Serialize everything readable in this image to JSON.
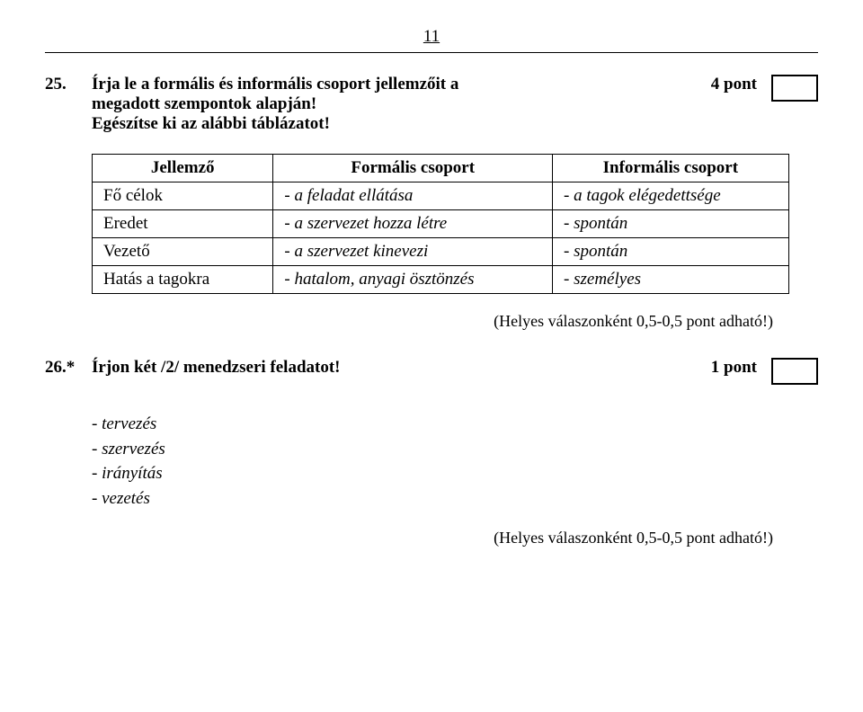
{
  "page_number": "11",
  "q25": {
    "number": "25.",
    "text_line1": "Írja le a formális és informális csoport jellemzőit a",
    "text_line2": "megadott szempontok alapján!",
    "text_line3": "Egészítse ki az alábbi táblázatot!",
    "points": "4 pont"
  },
  "table": {
    "h1": "Jellemző",
    "h2": "Formális csoport",
    "h3": "Informális csoport",
    "r1c1": "Fő célok",
    "r1c2": "- a feladat ellátása",
    "r1c3": "- a tagok elégedettsége",
    "r2c1": "Eredet",
    "r2c2": "- a szervezet hozza létre",
    "r2c3": "- spontán",
    "r3c1": "Vezető",
    "r3c2": "- a szervezet kinevezi",
    "r3c3": "- spontán",
    "r4c1": "Hatás a tagokra",
    "r4c2": "- hatalom, anyagi ösztönzés",
    "r4c3": "- személyes"
  },
  "note1": "(Helyes válaszonként 0,5-0,5 pont adható!)",
  "q26": {
    "number": "26.*",
    "text": "Írjon két /2/ menedzseri feladatot!",
    "points": "1 pont"
  },
  "answers26": {
    "a1": "- tervezés",
    "a2": "- szervezés",
    "a3": "- irányítás",
    "a4": "- vezetés"
  },
  "note2": "(Helyes válaszonként 0,5-0,5 pont adható!)"
}
